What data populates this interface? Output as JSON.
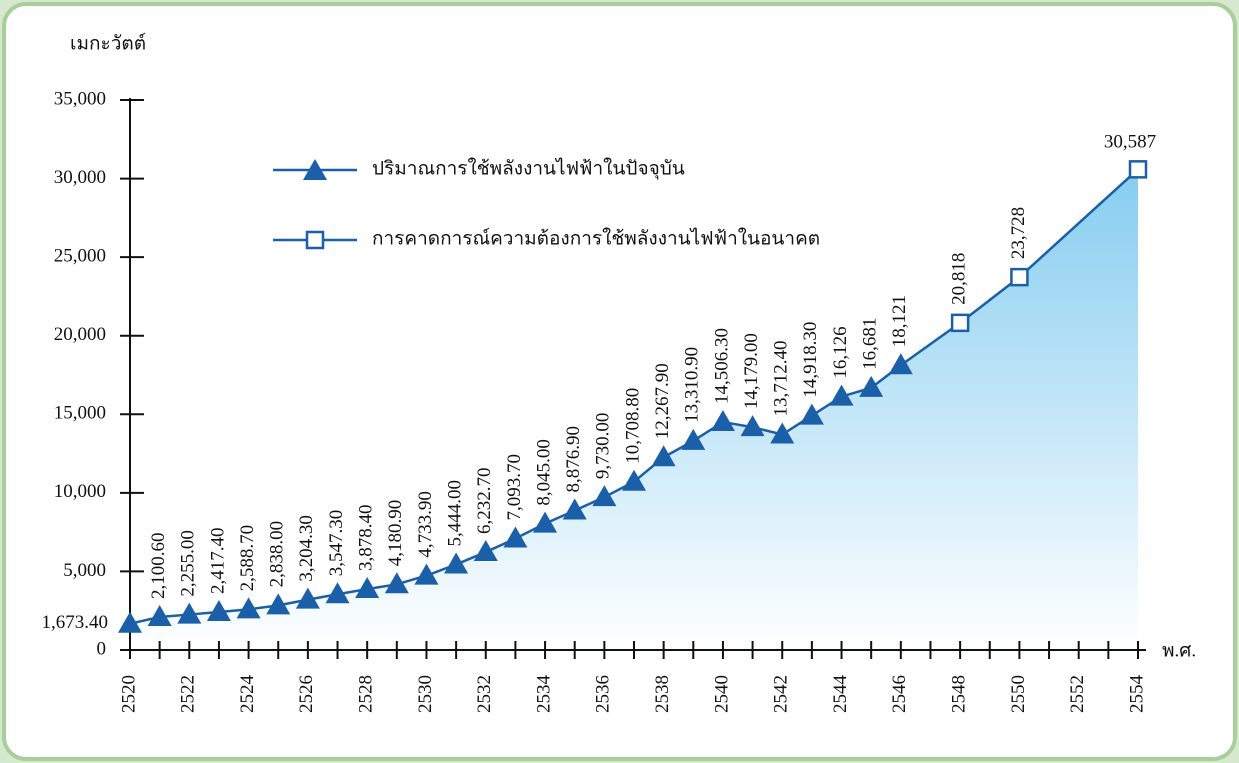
{
  "chart_data": {
    "type": "line",
    "y_label": "เมกะวัตต์",
    "x_label": "พ.ศ.",
    "xlim": [
      2520,
      2554
    ],
    "xticks": [
      2520,
      2522,
      2524,
      2526,
      2528,
      2530,
      2532,
      2534,
      2536,
      2538,
      2540,
      2542,
      2544,
      2546,
      2548,
      2550,
      2552,
      2554
    ],
    "x_minor_ticks": [
      2521,
      2523,
      2525,
      2527,
      2529,
      2531,
      2533,
      2535,
      2537,
      2539,
      2541,
      2543,
      2545,
      2547,
      2549,
      2551,
      2553
    ],
    "ylim": [
      0,
      35000
    ],
    "yticks": [
      0,
      {
        "value": 5000,
        "label": "5,000"
      },
      {
        "value": 10000,
        "label": "10,000"
      },
      {
        "value": 15000,
        "label": "15,000"
      },
      {
        "value": 20000,
        "label": "20,000"
      },
      {
        "value": 25000,
        "label": "25,000"
      },
      {
        "value": 30000,
        "label": "30,000"
      },
      {
        "value": 35000,
        "label": "35,000"
      }
    ],
    "series": [
      {
        "name": "ปริมาณการใช้พลังงานไฟฟ้าในปัจจุบัน",
        "color": "#1a5fa8",
        "marker": "triangle",
        "x": [
          2520,
          2521,
          2522,
          2523,
          2524,
          2525,
          2526,
          2527,
          2528,
          2529,
          2530,
          2531,
          2532,
          2533,
          2534,
          2535,
          2536,
          2537,
          2538,
          2539,
          2540,
          2541,
          2542,
          2543,
          2544,
          2545,
          2546
        ],
        "values": [
          1673.4,
          2100.6,
          2255.0,
          2417.4,
          2588.7,
          2838.0,
          3204.3,
          3547.3,
          3878.4,
          4180.9,
          4733.9,
          5444.0,
          6232.7,
          7093.7,
          8045.0,
          8876.9,
          9730.0,
          10708.8,
          12267.9,
          13310.9,
          14506.3,
          14179.0,
          13712.4,
          14918.3,
          16126,
          16681,
          18121
        ],
        "value_labels": [
          "1,673.40",
          "2,100.60",
          "2,255.00",
          "2,417.40",
          "2,588.70",
          "2,838.00",
          "3,204.30",
          "3,547.30",
          "3,878.40",
          "4,180.90",
          "4,733.90",
          "5,444.00",
          "6,232.70",
          "7,093.70",
          "8,045.00",
          "8,876.90",
          "9,730.00",
          "10,708.80",
          "12,267.90",
          "13,310.90",
          "14,506.30",
          "14,179.00",
          "13,712.40",
          "14,918.30",
          "16,126",
          "16,681",
          "18,121"
        ]
      },
      {
        "name": "การคาดการณ์ความต้องการใช้พลังงานไฟฟ้าในอนาคต",
        "color": "#1a5fa8",
        "marker": "square",
        "x": [
          2548,
          2550,
          2554
        ],
        "values": [
          20818,
          23728,
          30587
        ],
        "value_labels": [
          "20,818",
          "23,728",
          "30,587"
        ]
      }
    ]
  }
}
